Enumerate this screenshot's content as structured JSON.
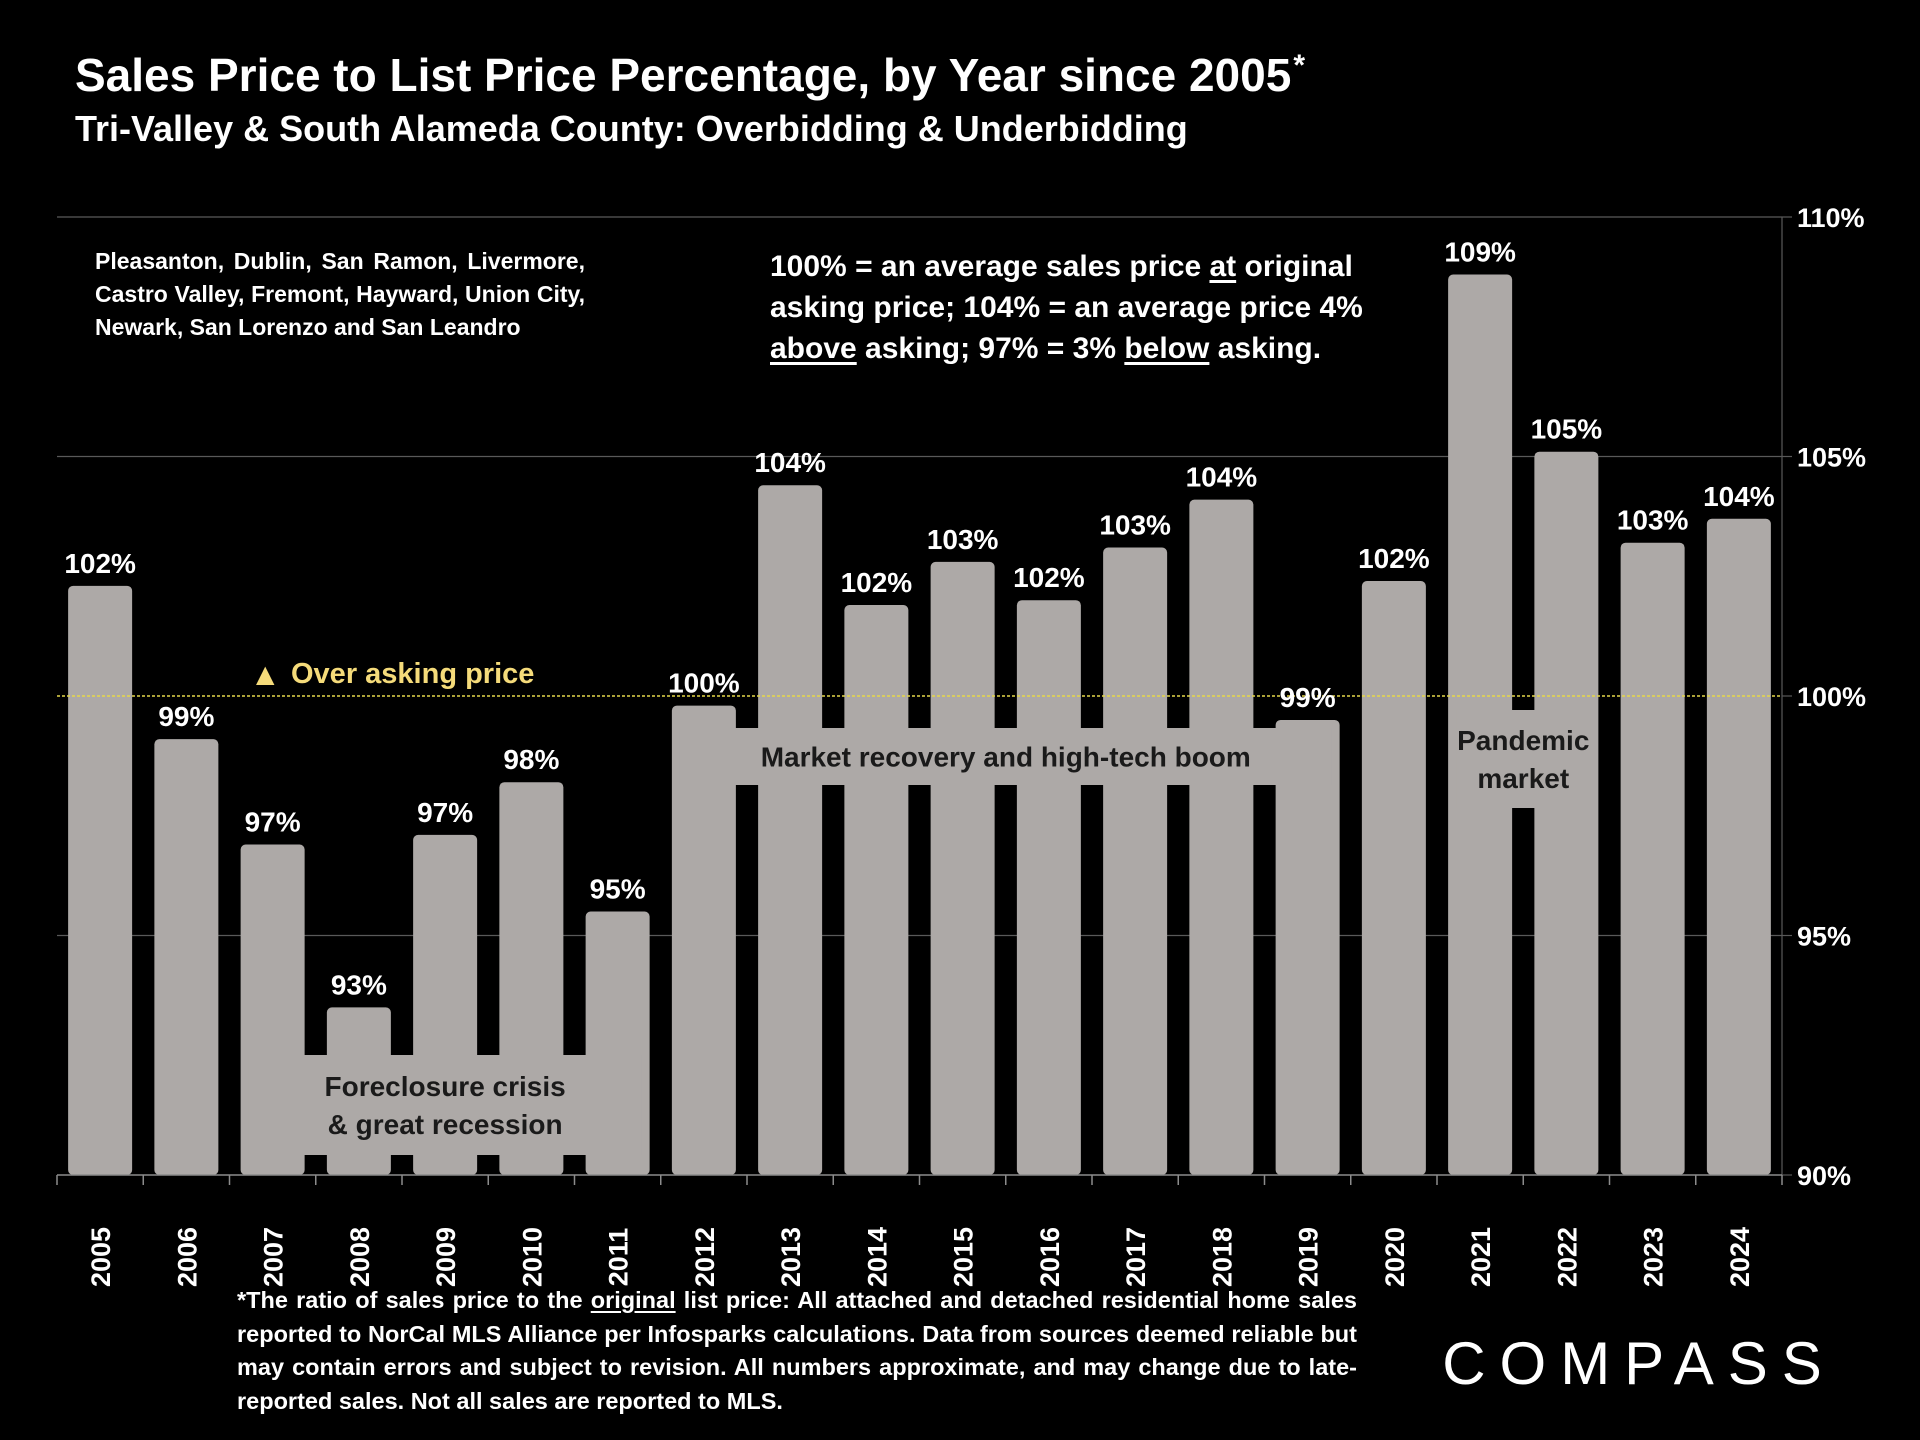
{
  "title": "Sales Price to List Price Percentage, by Year since 2005",
  "title_mark": "*",
  "subtitle": "Tri-Valley & South Alameda County: Overbidding & Underbidding",
  "towns_note": "Pleasanton, Dublin, San Ramon, Livermore, Castro Valley, Fremont, Hayward, Union City, Newark, San Lorenzo and San Leandro",
  "explanation": {
    "p1": "100% = an average sales price ",
    "u1": "at",
    "p2": " original asking price; 104% = an average price 4% ",
    "u2": "above",
    "p3": " asking; 97% = 3% ",
    "u3": "below",
    "p4": " asking."
  },
  "footnote": {
    "p1": "*The ratio of sales price to the ",
    "u1": "original",
    "p2": " list price: All attached and detached residential home sales reported to NorCal MLS Alliance per Infosparks calculations. Data from sources deemed reliable but may contain errors and subject to revision. All numbers approximate, and may change due to late-reported sales. Not all sales are reported to MLS."
  },
  "logo_text": "COMPASS",
  "colors": {
    "background": "#000000",
    "bar": "#ada9a7",
    "gridline": "#595959",
    "reference_line": "#e6d84a",
    "reference_label": "#f5db7a",
    "annotation_text": "#1a1a1a",
    "text": "#ffffff"
  },
  "chart_data": {
    "type": "bar",
    "categories": [
      "2005",
      "2006",
      "2007",
      "2008",
      "2009",
      "2010",
      "2011",
      "2012",
      "2013",
      "2014",
      "2015",
      "2016",
      "2017",
      "2018",
      "2019",
      "2020",
      "2021",
      "2022",
      "2023",
      "2024"
    ],
    "values": [
      102.3,
      99.1,
      96.9,
      93.5,
      97.1,
      98.2,
      95.5,
      99.8,
      104.4,
      101.9,
      102.8,
      102.0,
      103.1,
      104.1,
      99.5,
      102.4,
      108.8,
      105.1,
      103.2,
      103.7
    ],
    "data_labels": [
      "102%",
      "99%",
      "97%",
      "93%",
      "97%",
      "98%",
      "95%",
      "100%",
      "104%",
      "102%",
      "103%",
      "102%",
      "103%",
      "104%",
      "99%",
      "102%",
      "109%",
      "105%",
      "103%",
      "104%"
    ],
    "ylim": [
      90,
      110
    ],
    "y_ticks": [
      90,
      95,
      100,
      105,
      110
    ],
    "y_tick_labels": [
      "90%",
      "95%",
      "100%",
      "105%",
      "110%"
    ],
    "y_axis_side": "right",
    "grid": true,
    "reference_line": {
      "value": 100,
      "label": "Over asking price",
      "marker": "▲"
    },
    "annotations": [
      {
        "lines": [
          "Foreclosure crisis",
          "& great recession"
        ],
        "from": "2007",
        "to": "2011"
      },
      {
        "lines": [
          "Market recovery and high-tech boom"
        ],
        "from": "2012",
        "to": "2019"
      },
      {
        "lines": [
          "Pandemic",
          "market"
        ],
        "from": "2021",
        "to": "2022"
      }
    ]
  }
}
